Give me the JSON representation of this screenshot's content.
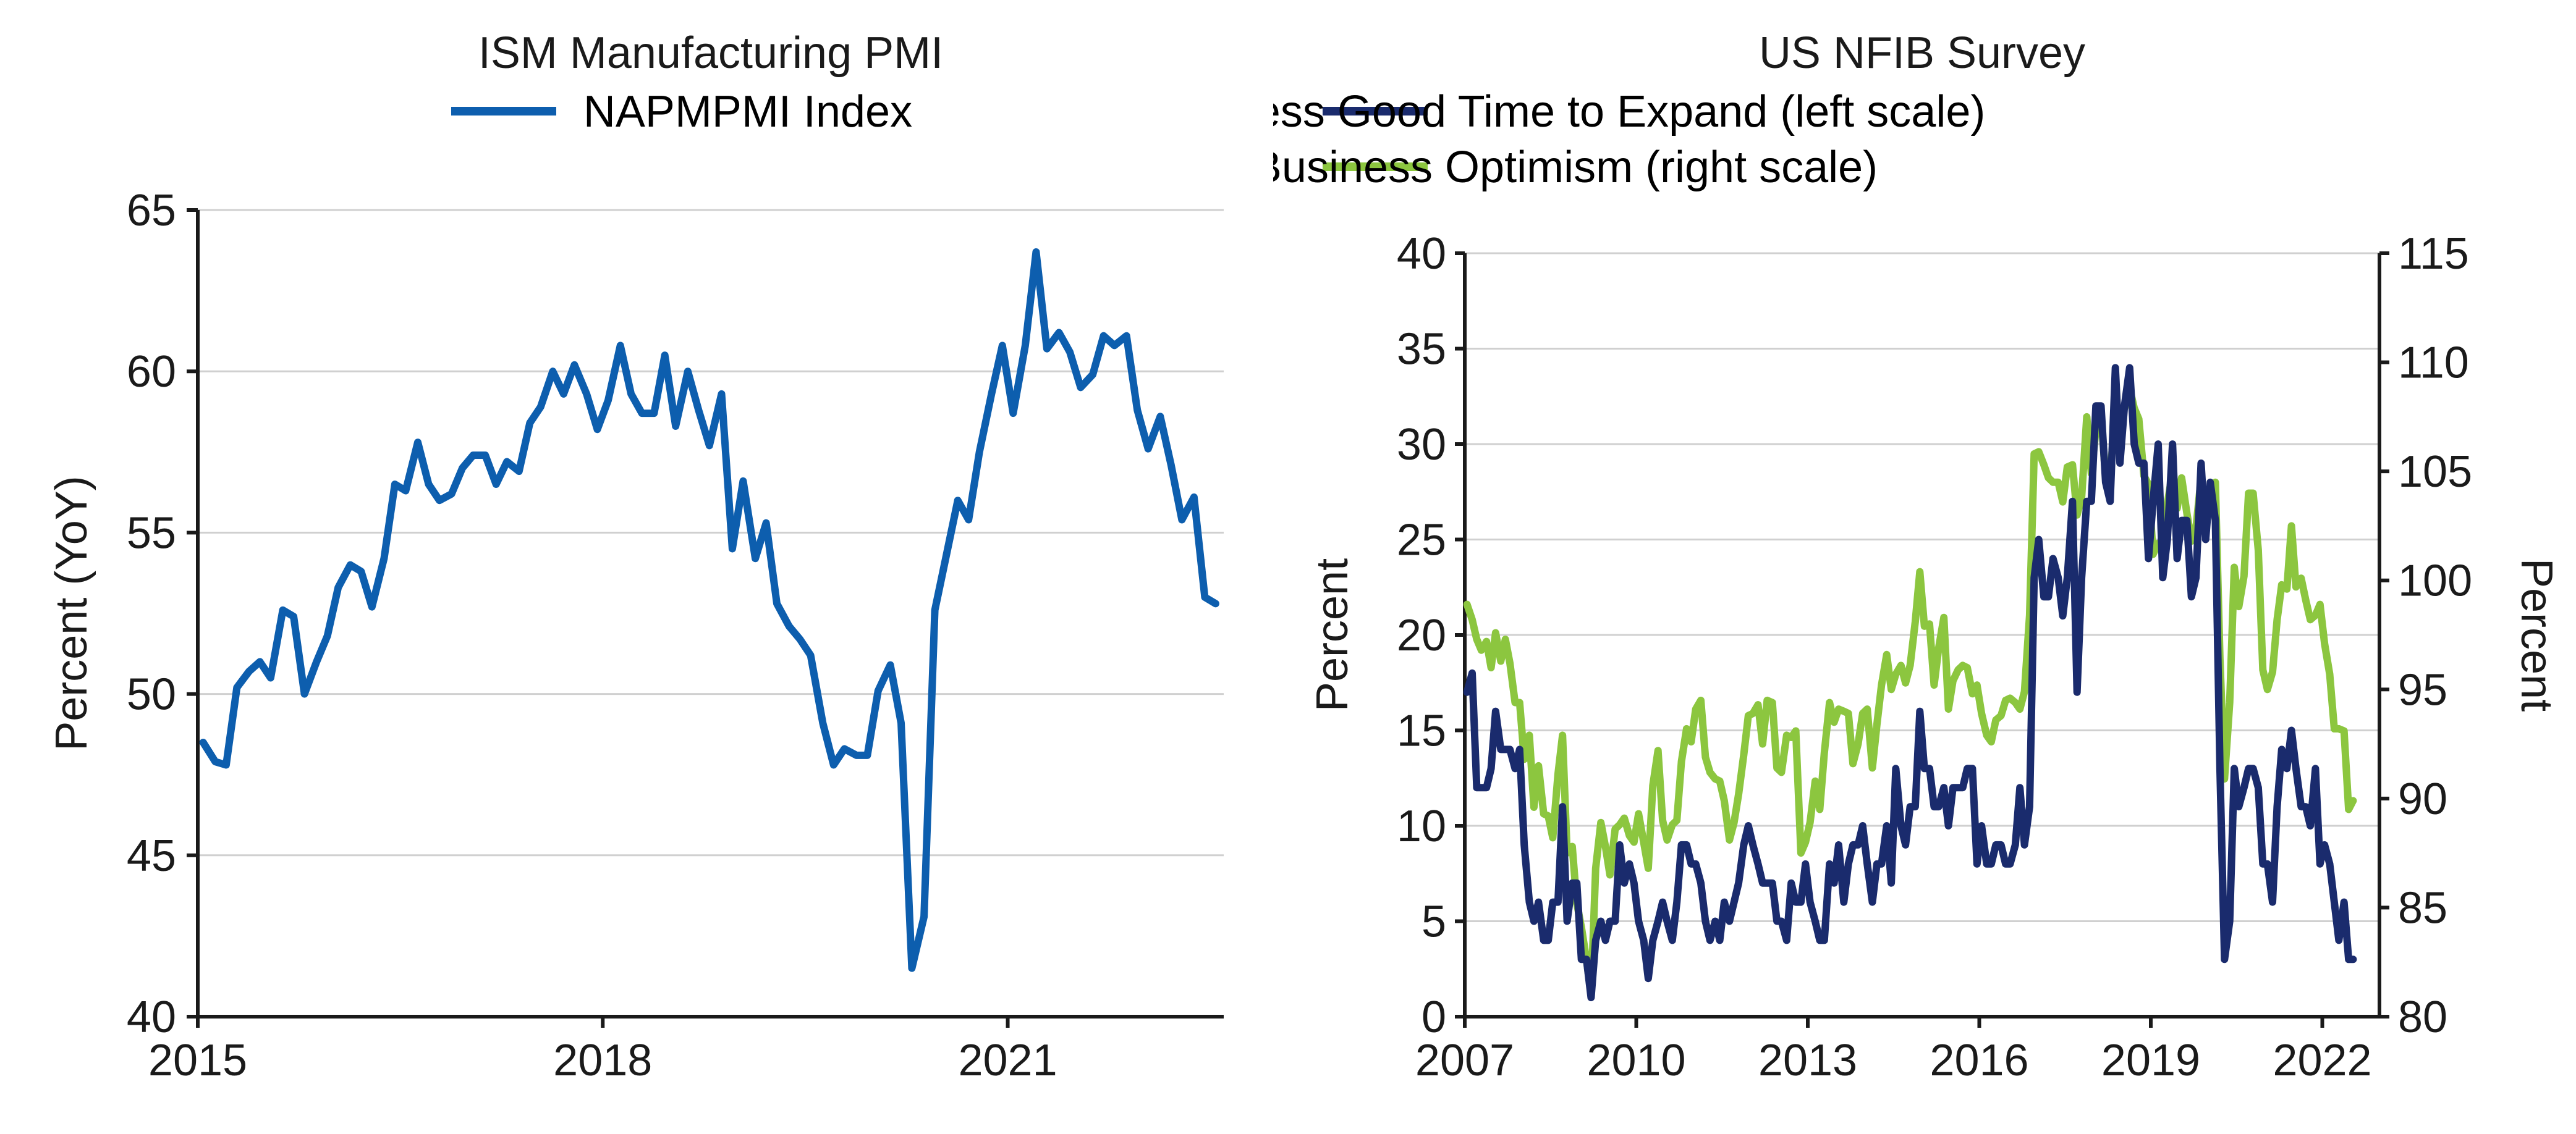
{
  "colors": {
    "background": "#ffffff",
    "text": "#1a1a1a",
    "grid": "#d0d0d0",
    "series_blue": "#0d5eae",
    "series_navy": "#1a2b6d",
    "series_green": "#8cc63f"
  },
  "left_chart": {
    "type": "line",
    "title": "ISM Manufacturing PMI",
    "legend": [
      {
        "label": "NAPMPMI Index",
        "color": "#0d5eae"
      }
    ],
    "ylabel": "Percent (YoY)",
    "x_domain": [
      2015.0,
      2022.6
    ],
    "y_domain": [
      40,
      65
    ],
    "x_ticks": [
      2015,
      2018,
      2021
    ],
    "y_ticks": [
      40,
      45,
      50,
      55,
      60,
      65
    ],
    "line_width": 12,
    "grid_y": true,
    "font_size": 72,
    "series": [
      {
        "name": "NAPMPMI Index",
        "color": "#0d5eae",
        "x": [
          2015.04,
          2015.13,
          2015.21,
          2015.29,
          2015.38,
          2015.46,
          2015.54,
          2015.63,
          2015.71,
          2015.79,
          2015.88,
          2015.96,
          2016.04,
          2016.13,
          2016.21,
          2016.29,
          2016.38,
          2016.46,
          2016.54,
          2016.63,
          2016.71,
          2016.79,
          2016.88,
          2016.96,
          2017.04,
          2017.13,
          2017.21,
          2017.29,
          2017.38,
          2017.46,
          2017.54,
          2017.63,
          2017.71,
          2017.79,
          2017.88,
          2017.96,
          2018.04,
          2018.13,
          2018.21,
          2018.29,
          2018.38,
          2018.46,
          2018.54,
          2018.63,
          2018.71,
          2018.79,
          2018.88,
          2018.96,
          2019.04,
          2019.13,
          2019.21,
          2019.29,
          2019.38,
          2019.46,
          2019.54,
          2019.63,
          2019.71,
          2019.79,
          2019.88,
          2019.96,
          2020.04,
          2020.13,
          2020.21,
          2020.29,
          2020.38,
          2020.46,
          2020.54,
          2020.63,
          2020.71,
          2020.79,
          2020.88,
          2020.96,
          2021.04,
          2021.13,
          2021.21,
          2021.29,
          2021.38,
          2021.46,
          2021.54,
          2021.63,
          2021.71,
          2021.79,
          2021.88,
          2021.96,
          2022.04,
          2022.13,
          2022.21,
          2022.29,
          2022.38,
          2022.46,
          2022.54
        ],
        "y": [
          48.5,
          47.9,
          47.8,
          50.2,
          50.7,
          51.0,
          50.5,
          52.6,
          52.4,
          50.0,
          51.0,
          51.8,
          53.3,
          54.0,
          53.8,
          52.7,
          54.2,
          56.5,
          56.3,
          57.8,
          56.5,
          56.0,
          56.2,
          57.0,
          57.4,
          57.4,
          56.5,
          57.2,
          56.9,
          58.4,
          58.9,
          60.0,
          59.3,
          60.2,
          59.3,
          58.2,
          59.1,
          60.8,
          59.3,
          58.7,
          58.7,
          60.5,
          58.3,
          60.0,
          58.8,
          57.7,
          59.3,
          54.5,
          56.6,
          54.2,
          55.3,
          52.8,
          52.1,
          51.7,
          51.2,
          49.1,
          47.8,
          48.3,
          48.1,
          48.1,
          50.1,
          50.9,
          49.1,
          41.5,
          43.1,
          52.6,
          54.2,
          56.0,
          55.4,
          57.5,
          59.3,
          60.8,
          58.7,
          60.8,
          63.7,
          60.7,
          61.2,
          60.6,
          59.5,
          59.9,
          61.1,
          60.8,
          61.1,
          58.8,
          57.6,
          58.6,
          57.1,
          55.4,
          56.1,
          53.0,
          52.8
        ]
      }
    ]
  },
  "right_chart": {
    "type": "line-dual-axis",
    "title": "US NFIB Survey",
    "legend": [
      {
        "label": "NFIB Small Business Good Time to Expand (left scale)",
        "color": "#1a2b6d"
      },
      {
        "label": "NFIB Small Business Optimism (right scale)",
        "color": "#8cc63f"
      }
    ],
    "ylabel_left": "Percent",
    "ylabel_right": "Percent",
    "x_domain": [
      2007.0,
      2023.0
    ],
    "y_left_domain": [
      0,
      40
    ],
    "y_right_domain": [
      80,
      115
    ],
    "x_ticks": [
      2007,
      2010,
      2013,
      2016,
      2019,
      2022
    ],
    "y_left_ticks": [
      0,
      5,
      10,
      15,
      20,
      25,
      30,
      35,
      40
    ],
    "y_right_ticks": [
      80,
      85,
      90,
      95,
      100,
      105,
      110,
      115
    ],
    "line_width": 12,
    "grid_y": true,
    "font_size": 72,
    "series": [
      {
        "name": "NFIB Good Time to Expand",
        "axis": "left",
        "color": "#1a2b6d",
        "x": [
          2007.04,
          2007.13,
          2007.21,
          2007.29,
          2007.38,
          2007.46,
          2007.54,
          2007.63,
          2007.71,
          2007.79,
          2007.88,
          2007.96,
          2008.04,
          2008.13,
          2008.21,
          2008.29,
          2008.38,
          2008.46,
          2008.54,
          2008.63,
          2008.71,
          2008.79,
          2008.88,
          2008.96,
          2009.04,
          2009.13,
          2009.21,
          2009.29,
          2009.38,
          2009.46,
          2009.54,
          2009.63,
          2009.71,
          2009.79,
          2009.88,
          2009.96,
          2010.04,
          2010.13,
          2010.21,
          2010.29,
          2010.38,
          2010.46,
          2010.54,
          2010.63,
          2010.71,
          2010.79,
          2010.88,
          2010.96,
          2011.04,
          2011.13,
          2011.21,
          2011.29,
          2011.38,
          2011.46,
          2011.54,
          2011.63,
          2011.71,
          2011.79,
          2011.88,
          2011.96,
          2012.04,
          2012.13,
          2012.21,
          2012.29,
          2012.38,
          2012.46,
          2012.54,
          2012.63,
          2012.71,
          2012.79,
          2012.88,
          2012.96,
          2013.04,
          2013.13,
          2013.21,
          2013.29,
          2013.38,
          2013.46,
          2013.54,
          2013.63,
          2013.71,
          2013.79,
          2013.88,
          2013.96,
          2014.04,
          2014.13,
          2014.21,
          2014.29,
          2014.38,
          2014.46,
          2014.54,
          2014.63,
          2014.71,
          2014.79,
          2014.88,
          2014.96,
          2015.04,
          2015.13,
          2015.21,
          2015.29,
          2015.38,
          2015.46,
          2015.54,
          2015.63,
          2015.71,
          2015.79,
          2015.88,
          2015.96,
          2016.04,
          2016.13,
          2016.21,
          2016.29,
          2016.38,
          2016.46,
          2016.54,
          2016.63,
          2016.71,
          2016.79,
          2016.88,
          2016.96,
          2017.04,
          2017.13,
          2017.21,
          2017.29,
          2017.38,
          2017.46,
          2017.54,
          2017.63,
          2017.71,
          2017.79,
          2017.88,
          2017.96,
          2018.04,
          2018.13,
          2018.21,
          2018.29,
          2018.38,
          2018.46,
          2018.54,
          2018.63,
          2018.71,
          2018.79,
          2018.88,
          2018.96,
          2019.04,
          2019.13,
          2019.21,
          2019.29,
          2019.38,
          2019.46,
          2019.54,
          2019.63,
          2019.71,
          2019.79,
          2019.88,
          2019.96,
          2020.04,
          2020.13,
          2020.21,
          2020.29,
          2020.38,
          2020.46,
          2020.54,
          2020.63,
          2020.71,
          2020.79,
          2020.88,
          2020.96,
          2021.04,
          2021.13,
          2021.21,
          2021.29,
          2021.38,
          2021.46,
          2021.54,
          2021.63,
          2021.71,
          2021.79,
          2021.88,
          2021.96,
          2022.04,
          2022.13,
          2022.21,
          2022.29,
          2022.38,
          2022.46,
          2022.54
        ],
        "y": [
          17,
          18,
          12,
          12,
          12,
          13,
          16,
          14,
          14,
          14,
          13,
          14,
          9,
          6,
          5,
          6,
          4,
          4,
          6,
          6,
          11,
          5,
          7,
          7,
          3,
          3,
          1,
          4,
          5,
          4,
          5,
          5,
          9,
          7,
          8,
          7,
          5,
          4,
          2,
          4,
          5,
          6,
          5,
          4,
          6,
          9,
          9,
          8,
          8,
          7,
          5,
          4,
          5,
          4,
          6,
          5,
          6,
          7,
          9,
          10,
          9,
          8,
          7,
          7,
          7,
          5,
          5,
          4,
          7,
          6,
          6,
          8,
          6,
          5,
          4,
          4,
          8,
          7,
          9,
          6,
          8,
          9,
          9,
          10,
          8,
          6,
          8,
          8,
          10,
          7,
          13,
          10,
          9,
          11,
          11,
          16,
          13,
          13,
          11,
          11,
          12,
          10,
          12,
          12,
          12,
          13,
          13,
          8,
          10,
          8,
          8,
          9,
          9,
          8,
          8,
          9,
          12,
          9,
          11,
          23,
          25,
          22,
          22,
          24,
          23,
          21,
          23,
          27,
          17,
          23,
          27,
          27,
          32,
          32,
          28,
          27,
          34,
          29,
          32,
          34,
          30,
          29,
          29,
          24,
          27,
          30,
          23,
          25,
          30,
          24,
          26,
          26,
          22,
          23,
          29,
          25,
          28,
          26,
          13,
          3,
          5,
          13,
          11,
          12,
          13,
          13,
          12,
          8,
          8,
          6,
          11,
          14,
          13,
          15,
          13,
          11,
          11,
          10,
          13,
          8,
          9,
          8,
          6,
          4,
          6,
          3,
          3
        ]
      },
      {
        "name": "NFIB Optimism",
        "axis": "right",
        "color": "#8cc63f",
        "x": [
          2007.04,
          2007.13,
          2007.21,
          2007.29,
          2007.38,
          2007.46,
          2007.54,
          2007.63,
          2007.71,
          2007.79,
          2007.88,
          2007.96,
          2008.04,
          2008.13,
          2008.21,
          2008.29,
          2008.38,
          2008.46,
          2008.54,
          2008.63,
          2008.71,
          2008.79,
          2008.88,
          2008.96,
          2009.04,
          2009.13,
          2009.21,
          2009.29,
          2009.38,
          2009.46,
          2009.54,
          2009.63,
          2009.71,
          2009.79,
          2009.88,
          2009.96,
          2010.04,
          2010.13,
          2010.21,
          2010.29,
          2010.38,
          2010.46,
          2010.54,
          2010.63,
          2010.71,
          2010.79,
          2010.88,
          2010.96,
          2011.04,
          2011.13,
          2011.21,
          2011.29,
          2011.38,
          2011.46,
          2011.54,
          2011.63,
          2011.71,
          2011.79,
          2011.88,
          2011.96,
          2012.04,
          2012.13,
          2012.21,
          2012.29,
          2012.38,
          2012.46,
          2012.54,
          2012.63,
          2012.71,
          2012.79,
          2012.88,
          2012.96,
          2013.04,
          2013.13,
          2013.21,
          2013.29,
          2013.38,
          2013.46,
          2013.54,
          2013.63,
          2013.71,
          2013.79,
          2013.88,
          2013.96,
          2014.04,
          2014.13,
          2014.21,
          2014.29,
          2014.38,
          2014.46,
          2014.54,
          2014.63,
          2014.71,
          2014.79,
          2014.88,
          2014.96,
          2015.04,
          2015.13,
          2015.21,
          2015.29,
          2015.38,
          2015.46,
          2015.54,
          2015.63,
          2015.71,
          2015.79,
          2015.88,
          2015.96,
          2016.04,
          2016.13,
          2016.21,
          2016.29,
          2016.38,
          2016.46,
          2016.54,
          2016.63,
          2016.71,
          2016.79,
          2016.88,
          2016.96,
          2017.04,
          2017.13,
          2017.21,
          2017.29,
          2017.38,
          2017.46,
          2017.54,
          2017.63,
          2017.71,
          2017.79,
          2017.88,
          2017.96,
          2018.04,
          2018.13,
          2018.21,
          2018.29,
          2018.38,
          2018.46,
          2018.54,
          2018.63,
          2018.71,
          2018.79,
          2018.88,
          2018.96,
          2019.04,
          2019.13,
          2019.21,
          2019.29,
          2019.38,
          2019.46,
          2019.54,
          2019.63,
          2019.71,
          2019.79,
          2019.88,
          2019.96,
          2020.04,
          2020.13,
          2020.21,
          2020.29,
          2020.38,
          2020.46,
          2020.54,
          2020.63,
          2020.71,
          2020.79,
          2020.88,
          2020.96,
          2021.04,
          2021.13,
          2021.21,
          2021.29,
          2021.38,
          2021.46,
          2021.54,
          2021.63,
          2021.71,
          2021.79,
          2021.88,
          2021.96,
          2022.04,
          2022.13,
          2022.21,
          2022.29,
          2022.38,
          2022.46,
          2022.54
        ],
        "y": [
          98.9,
          98.2,
          97.3,
          96.8,
          97.2,
          96.0,
          97.6,
          96.3,
          97.3,
          96.2,
          94.4,
          94.4,
          91.8,
          92.9,
          89.6,
          91.5,
          89.3,
          89.2,
          88.2,
          91.1,
          92.9,
          87.5,
          87.8,
          85.2,
          84.1,
          82.6,
          81.0,
          86.8,
          88.9,
          87.8,
          86.5,
          88.6,
          88.8,
          89.1,
          88.3,
          88.0,
          89.3,
          88.0,
          86.8,
          90.6,
          92.2,
          89.0,
          88.1,
          88.8,
          89.0,
          91.7,
          93.2,
          92.6,
          94.1,
          94.5,
          91.9,
          91.2,
          90.9,
          90.8,
          89.9,
          88.1,
          88.9,
          90.2,
          92.0,
          93.8,
          93.9,
          94.3,
          92.5,
          94.5,
          94.4,
          91.4,
          91.2,
          92.9,
          92.8,
          93.1,
          87.5,
          88.0,
          88.9,
          90.8,
          89.5,
          92.1,
          94.4,
          93.5,
          94.1,
          94.0,
          93.9,
          91.6,
          92.5,
          93.9,
          94.1,
          91.4,
          93.4,
          95.2,
          96.6,
          95.0,
          95.7,
          96.1,
          95.3,
          96.1,
          98.1,
          100.4,
          97.9,
          98.0,
          95.2,
          96.9,
          98.3,
          94.1,
          95.4,
          95.9,
          96.1,
          96.0,
          94.8,
          95.2,
          93.9,
          92.9,
          92.6,
          93.6,
          93.8,
          94.5,
          94.6,
          94.4,
          94.1,
          94.9,
          98.4,
          105.8,
          105.9,
          105.3,
          104.7,
          104.5,
          104.5,
          103.6,
          105.2,
          105.3,
          103.0,
          103.8,
          107.5,
          104.9,
          106.9,
          107.6,
          104.7,
          104.8,
          107.8,
          107.2,
          107.9,
          108.8,
          107.9,
          107.4,
          104.8,
          104.4,
          101.2,
          101.7,
          101.8,
          103.5,
          105.0,
          103.3,
          104.7,
          103.1,
          101.8,
          102.4,
          104.7,
          102.7,
          104.3,
          104.5,
          96.4,
          90.9,
          94.4,
          100.6,
          98.8,
          100.2,
          104.0,
          104.0,
          101.4,
          95.9,
          95.0,
          95.8,
          98.2,
          99.8,
          99.6,
          102.5,
          99.7,
          100.1,
          99.1,
          98.2,
          98.4,
          98.9,
          97.1,
          95.7,
          93.2,
          93.2,
          93.1,
          89.5,
          89.9
        ]
      }
    ]
  }
}
